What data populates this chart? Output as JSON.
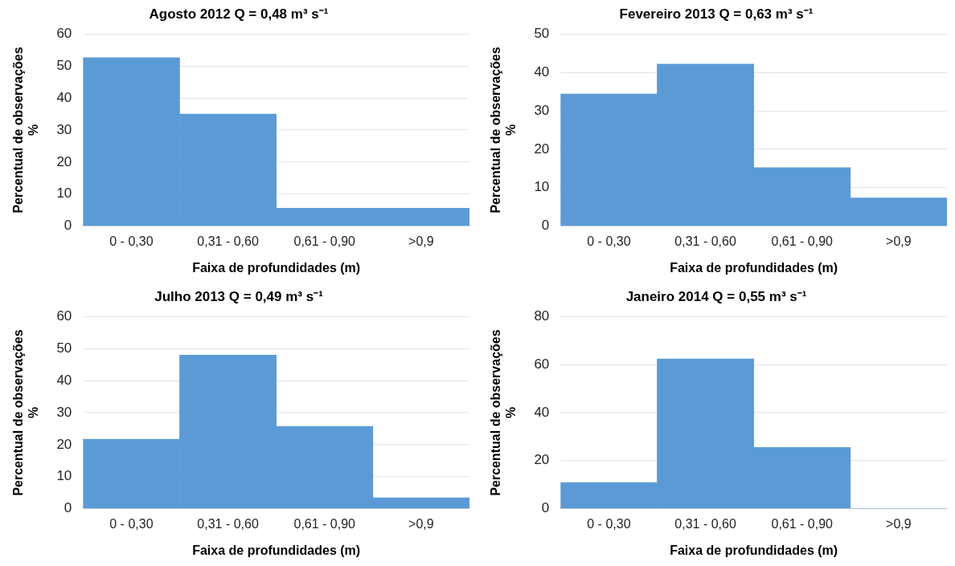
{
  "chart_data": [
    {
      "type": "bar",
      "title": "Agosto 2012 Q = 0,48 m³ s⁻¹",
      "xlabel": "Faixa de profundidades (m)",
      "ylabel": "Percentual de observações %",
      "categories": [
        "0 - 0,30",
        "0,31 - 0,60",
        "0,61 - 0,90",
        ">0,9"
      ],
      "values": [
        52.6,
        35,
        5.6,
        5.6
      ],
      "color": "#5b9bd5",
      "ylim": [
        0,
        60
      ],
      "yticks": [
        0,
        10,
        20,
        30,
        40,
        50,
        60
      ],
      "grid": "y",
      "legend": false
    },
    {
      "type": "bar",
      "title": "Fevereiro 2013 Q = 0,63 m³ s⁻¹",
      "xlabel": "Faixa de profundidades (m)",
      "ylabel": "Percentual de observações %",
      "categories": [
        "0 - 0,30",
        "0,31 - 0,60",
        "0,61 - 0,90",
        ">0,9"
      ],
      "values": [
        34.4,
        42.2,
        15.2,
        7.3
      ],
      "color": "#5b9bd5",
      "ylim": [
        0,
        50
      ],
      "yticks": [
        0,
        10,
        20,
        30,
        40,
        50
      ],
      "grid": "y",
      "legend": false
    },
    {
      "type": "bar",
      "title": "Julho 2013 Q = 0,49 m³ s⁻¹",
      "xlabel": "Faixa de profundidades (m)",
      "ylabel": "Percentual de observações %",
      "categories": [
        "0 - 0,30",
        "0,31 - 0,60",
        "0,61 - 0,90",
        ">0,9"
      ],
      "values": [
        21.7,
        48,
        25.7,
        3.4
      ],
      "color": "#5b9bd5",
      "ylim": [
        0,
        60
      ],
      "yticks": [
        0,
        10,
        20,
        30,
        40,
        50,
        60
      ],
      "grid": "y",
      "legend": false
    },
    {
      "type": "bar",
      "title": "Janeiro 2014 Q = 0,55 m³ s⁻¹",
      "xlabel": "Faixa de profundidades (m)",
      "ylabel": "Percentual de observações %",
      "categories": [
        "0 - 0,30",
        "0,31 - 0,60",
        "0,61 - 0,90",
        ">0,9"
      ],
      "values": [
        10.9,
        62.4,
        25.5,
        0
      ],
      "color": "#5b9bd5",
      "ylim": [
        0,
        80
      ],
      "yticks": [
        0,
        20,
        40,
        60,
        80
      ],
      "grid": "y",
      "legend": false
    }
  ]
}
